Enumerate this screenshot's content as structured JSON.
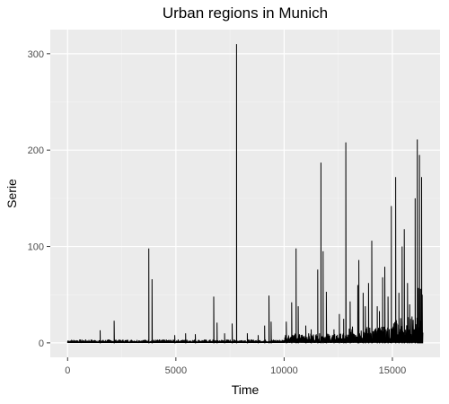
{
  "chart_data": {
    "type": "line",
    "title": "Urban regions in Munich",
    "xlabel": "Time",
    "ylabel": "Serie",
    "xlim": [
      -800,
      17200
    ],
    "ylim": [
      -15,
      325
    ],
    "xticks": [
      0,
      5000,
      10000,
      15000
    ],
    "yticks": [
      0,
      100,
      200,
      300
    ],
    "xtick_labels": [
      "0",
      "5000",
      "10000",
      "15000"
    ],
    "ytick_labels": [
      "0",
      "100",
      "200",
      "300"
    ],
    "grid": true,
    "background": "#ebebeb",
    "line_color": "#000000",
    "series": [
      {
        "peaks": [
          [
            1500,
            13
          ],
          [
            2150,
            23
          ],
          [
            3750,
            98
          ],
          [
            3900,
            66
          ],
          [
            4950,
            8
          ],
          [
            5450,
            10
          ],
          [
            5900,
            9
          ],
          [
            6750,
            48
          ],
          [
            6900,
            21
          ],
          [
            7250,
            10
          ],
          [
            7600,
            20
          ],
          [
            7800,
            310
          ],
          [
            8300,
            10
          ],
          [
            8800,
            8
          ],
          [
            9100,
            18
          ],
          [
            9300,
            49
          ],
          [
            9400,
            22
          ],
          [
            10100,
            22
          ],
          [
            10350,
            42
          ],
          [
            10550,
            98
          ],
          [
            10650,
            38
          ],
          [
            11000,
            18
          ],
          [
            11250,
            14
          ],
          [
            11550,
            76
          ],
          [
            11700,
            187
          ],
          [
            11800,
            95
          ],
          [
            11950,
            53
          ],
          [
            12300,
            14
          ],
          [
            12550,
            30
          ],
          [
            12750,
            25
          ],
          [
            12850,
            208
          ],
          [
            13050,
            43
          ],
          [
            13400,
            60
          ],
          [
            13450,
            86
          ],
          [
            13650,
            52
          ],
          [
            13750,
            38
          ],
          [
            13900,
            62
          ],
          [
            14050,
            106
          ],
          [
            14300,
            38
          ],
          [
            14400,
            33
          ],
          [
            14550,
            68
          ],
          [
            14650,
            79
          ],
          [
            14800,
            48
          ],
          [
            14950,
            142
          ],
          [
            15150,
            172
          ],
          [
            15300,
            52
          ],
          [
            15450,
            100
          ],
          [
            15550,
            118
          ],
          [
            15700,
            62
          ],
          [
            15800,
            40
          ],
          [
            15900,
            26
          ],
          [
            16050,
            150
          ],
          [
            16150,
            211
          ],
          [
            16200,
            57
          ],
          [
            16250,
            195
          ],
          [
            16300,
            56
          ],
          [
            16350,
            172
          ],
          [
            16380,
            50
          ]
        ]
      }
    ]
  }
}
